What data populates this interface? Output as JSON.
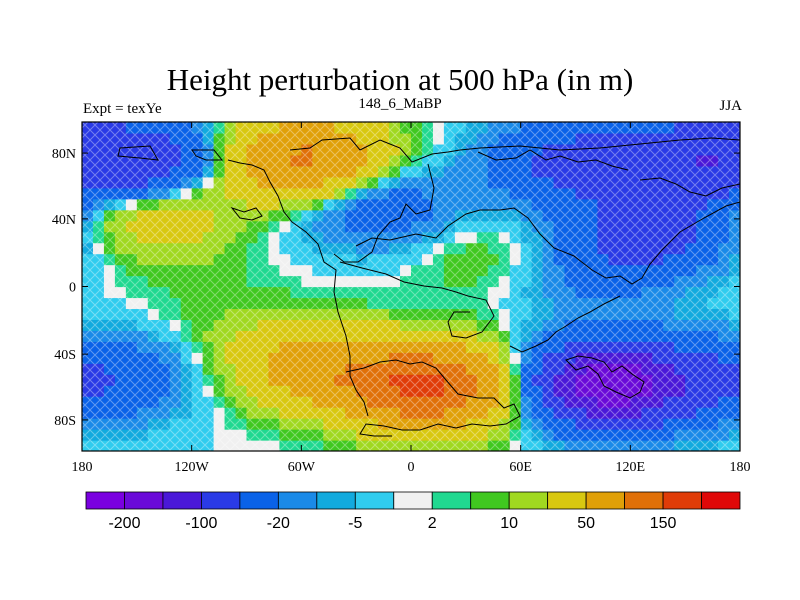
{
  "chart_data": {
    "type": "heatmap",
    "title": "Height perturbation at 500 hPa (in m)",
    "subtitle_left": "Expt = texYe",
    "subtitle_center": "148_6_MaBP",
    "subtitle_right": "JJA",
    "x_ticks": [
      "180",
      "120W",
      "60W",
      "0",
      "60E",
      "120E",
      "180"
    ],
    "y_ticks": [
      "80N",
      "40N",
      "0",
      "40S",
      "80S"
    ],
    "xlim": [
      -180,
      180
    ],
    "ylim": [
      -90,
      90
    ],
    "colorbar": {
      "colors": [
        "#7a00e0",
        "#6a0ad8",
        "#4a18d8",
        "#2a3ae6",
        "#0a62e8",
        "#1a8ae8",
        "#12aade",
        "#30ccee",
        "#f0f0f0",
        "#20d890",
        "#40c820",
        "#a0d820",
        "#d8c810",
        "#e0a008",
        "#e07008",
        "#e03c08",
        "#e00808"
      ],
      "labels": [
        "-200",
        "-100",
        "-20",
        "-5",
        "2",
        "10",
        "50",
        "150"
      ]
    },
    "features": [
      {
        "lon": -150,
        "lat": 68,
        "value": -90
      },
      {
        "lon": -58,
        "lat": 70,
        "value": 110
      },
      {
        "lon": -20,
        "lat": 45,
        "value": -40
      },
      {
        "lon": -140,
        "lat": 42,
        "value": 40
      },
      {
        "lon": 10,
        "lat": -55,
        "value": 160
      },
      {
        "lon": -50,
        "lat": -45,
        "value": 70
      },
      {
        "lon": 110,
        "lat": -53,
        "value": -190
      },
      {
        "lon": 130,
        "lat": 30,
        "value": -70
      },
      {
        "lon": 150,
        "lat": 70,
        "value": -80
      },
      {
        "lon": 85,
        "lat": 68,
        "value": -60
      },
      {
        "lon": -120,
        "lat": 10,
        "value": 5
      },
      {
        "lon": 40,
        "lat": 15,
        "value": 10
      },
      {
        "lon": -170,
        "lat": -50,
        "value": -50
      },
      {
        "lon": 100,
        "lat": 5,
        "value": -20
      },
      {
        "lon": -90,
        "lat": -25,
        "value": 10
      }
    ]
  }
}
